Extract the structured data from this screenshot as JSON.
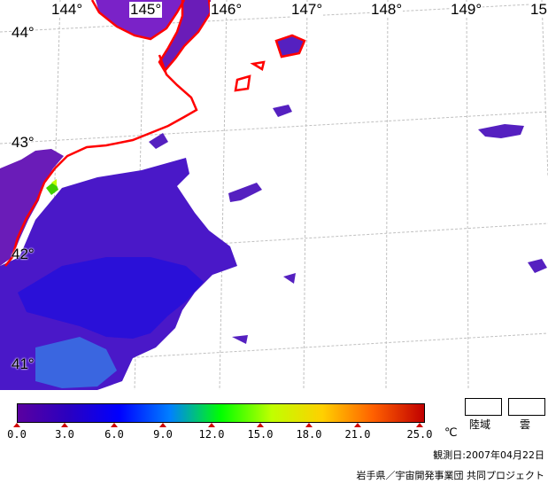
{
  "map": {
    "lon_labels": [
      "144°",
      "145°",
      "146°",
      "147°",
      "148°",
      "149°",
      "15"
    ],
    "lat_labels": [
      "44°",
      "43°",
      "42°",
      "41°"
    ],
    "coastline_color": "#ff0000",
    "grid_color": "#c0c0c0"
  },
  "legend": {
    "ticks": [
      "0.0",
      "3.0",
      "6.0",
      "9.0",
      "12.0",
      "15.0",
      "18.0",
      "21.0",
      "25.0"
    ],
    "unit": "℃",
    "gradient_colors": [
      "#5a00a0",
      "#2a00c0",
      "#0000ff",
      "#0080ff",
      "#00ff00",
      "#c0ff00",
      "#ffd000",
      "#ff6000",
      "#c00000"
    ],
    "land_label": "陸域",
    "cloud_label": "雲"
  },
  "observation_date": "観測日:2007年04月22日",
  "credit": "岩手県／宇宙開発事業団 共同プロジェクト"
}
